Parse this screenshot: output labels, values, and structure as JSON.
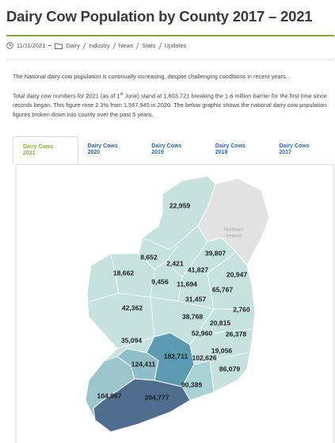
{
  "header": {
    "title": "Dairy Cow Population by County 2017 – 2021",
    "date": "11/11/2021",
    "categories": [
      "Dairy",
      "Industry",
      "News",
      "Stats",
      "Updates"
    ]
  },
  "body": {
    "paragraph_1": "The National dairy cow population is continually increasing, despite challenging conditions in recent years.",
    "paragraph_2": {
      "before": "Total dairy cow numbers for 2021 (as of 1",
      "superscript": "st",
      "after": " June) stand at 1,603,721 breaking the 1.6 million barrier for the first time since records began. This figure rose 2.3% from 1,567,945 in 2020. The below graphic shows the national dairy cow population figures broken down into county over the past 5 years."
    }
  },
  "tabs": [
    {
      "label": "Dairy Cows",
      "year": "2021"
    },
    {
      "label": "Dairy Cows",
      "year": "2020"
    },
    {
      "label": "Dairy Cows",
      "year": "2019"
    },
    {
      "label": "Dairy Cows",
      "year": "2018"
    },
    {
      "label": "Dairy Cows",
      "year": "2017"
    }
  ],
  "map": {
    "northern_ireland": [
      "Northern",
      "Ireland"
    ],
    "labels": [
      "22,959",
      "39,807",
      "8,652",
      "2,421",
      "41,827",
      "18,662",
      "20,947",
      "9,456",
      "11,694",
      "65,767",
      "31,457",
      "2,760",
      "42,362",
      "38,768",
      "20,815",
      "52,960",
      "26,378",
      "35,094",
      "19,056",
      "182,711",
      "102,626",
      "124,411",
      "86,079",
      "90,389",
      "104,967",
      "394,777"
    ]
  }
}
